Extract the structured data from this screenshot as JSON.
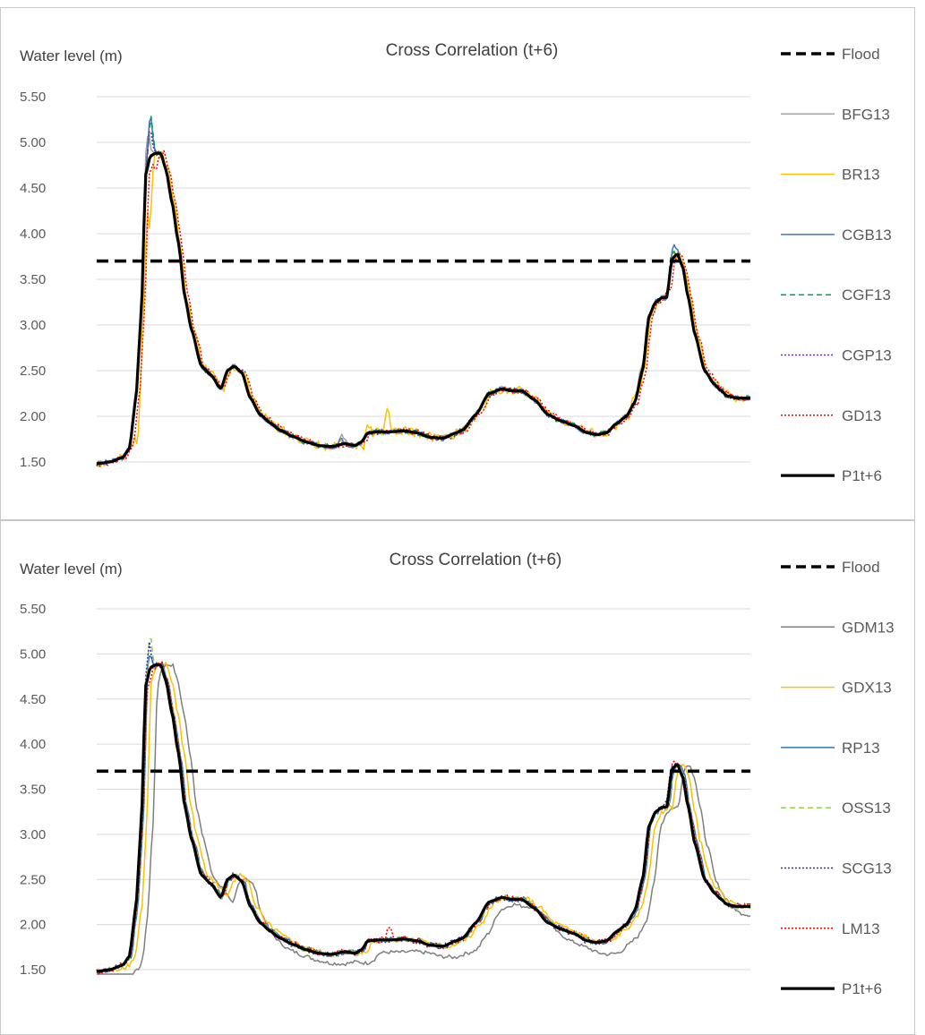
{
  "chart_data": [
    {
      "type": "line",
      "title": "Cross Correlation (t+6)",
      "ylabel": "Water level (m)",
      "xlabel": "",
      "ylim": [
        1.5,
        5.5
      ],
      "yticks": [
        "5.50",
        "5.00",
        "4.50",
        "4.00",
        "3.50",
        "3.00",
        "2.50",
        "2.00",
        "1.50"
      ],
      "xlim": [
        0,
        100
      ],
      "grid": true,
      "legend_position": "right",
      "flood_level": 3.7,
      "series": [
        {
          "name": "Flood",
          "color": "#000000",
          "dash": "dashed-bold",
          "kind": "flood"
        },
        {
          "name": "BFG13",
          "color": "#a5a5a5",
          "dash": "solid",
          "kind": "model",
          "seed": 1,
          "amp": 0.03,
          "spikes": [
            [
              7.8,
              0.35
            ],
            [
              37.5,
              0.1
            ],
            [
              83.2,
              0.1
            ]
          ],
          "shift": 0
        },
        {
          "name": "BR13",
          "color": "#ffc000",
          "dash": "solid",
          "kind": "model",
          "seed": 2,
          "amp": 0.05,
          "spikes": [
            [
              6.3,
              -0.45
            ],
            [
              8.1,
              -0.65
            ],
            [
              41.3,
              0.18
            ],
            [
              44.5,
              0.22
            ],
            [
              40.9,
              -0.12
            ],
            [
              82.2,
              0.12
            ],
            [
              87.8,
              0.18
            ]
          ],
          "shift": 0.3
        },
        {
          "name": "CGB13",
          "color": "#4472c4",
          "dash": "solid",
          "kind": "model",
          "seed": 3,
          "amp": 0.03,
          "spikes": [
            [
              8.2,
              0.45
            ],
            [
              37.4,
              0.08
            ],
            [
              88.3,
              0.14
            ]
          ],
          "shift": 0
        },
        {
          "name": "CGF13",
          "color": "#00a550",
          "dash": "dashed",
          "kind": "model",
          "seed": 4,
          "amp": 0.03,
          "spikes": [
            [
              8.3,
              0.42
            ],
            [
              87.9,
              0.1
            ]
          ],
          "shift": 0
        },
        {
          "name": "CGP13",
          "color": "#7030a0",
          "dash": "dotted",
          "kind": "model",
          "seed": 5,
          "amp": 0.025,
          "spikes": [
            [
              8.1,
              0.3
            ]
          ],
          "shift": 0
        },
        {
          "name": "GD13",
          "color": "#ff0000",
          "dash": "dotted",
          "kind": "model",
          "seed": 6,
          "amp": 0.03,
          "spikes": [
            [
              9.0,
              -0.15
            ],
            [
              87.5,
              0.1
            ]
          ],
          "shift": 0.5
        },
        {
          "name": "P1t+6",
          "color": "#000000",
          "dash": "solid-bold",
          "kind": "observed"
        }
      ]
    },
    {
      "type": "line",
      "title": "Cross Correlation (t+6)",
      "ylabel": "Water level (m)",
      "xlabel": "",
      "ylim": [
        1.5,
        5.5
      ],
      "yticks": [
        "5.50",
        "5.00",
        "4.50",
        "4.00",
        "3.50",
        "3.00",
        "2.50",
        "2.00",
        "1.50"
      ],
      "xlim": [
        0,
        100
      ],
      "grid": true,
      "legend_position": "right",
      "flood_level": 3.7,
      "series": [
        {
          "name": "Flood",
          "color": "#000000",
          "dash": "dashed-bold",
          "kind": "flood"
        },
        {
          "name": "GDM13",
          "color": "#7f7f7f",
          "dash": "solid",
          "kind": "model",
          "seed": 7,
          "amp": 0.02,
          "spikes": [],
          "shift": 1.8,
          "bias": -0.15
        },
        {
          "name": "GDX13",
          "color": "#ffc000",
          "dash": "solid",
          "kind": "model",
          "seed": 8,
          "amp": 0.03,
          "spikes": [
            [
              8.0,
              0.2
            ]
          ],
          "shift": 0.9
        },
        {
          "name": "RP13",
          "color": "#2e75b6",
          "dash": "solid",
          "kind": "model",
          "seed": 9,
          "amp": 0.03,
          "spikes": [
            [
              8.0,
              0.25
            ]
          ],
          "shift": 0.3
        },
        {
          "name": "OSS13",
          "color": "#92d050",
          "dash": "dashed",
          "kind": "model",
          "seed": 10,
          "amp": 0.03,
          "spikes": [
            [
              8.1,
              0.4
            ]
          ],
          "shift": 0.2
        },
        {
          "name": "SCG13",
          "color": "#3030a0",
          "dash": "dotted",
          "kind": "model",
          "seed": 11,
          "amp": 0.03,
          "spikes": [
            [
              8.0,
              0.3
            ],
            [
              87.5,
              0.12
            ]
          ],
          "shift": 0
        },
        {
          "name": "LM13",
          "color": "#ff0000",
          "dash": "dotted",
          "kind": "model",
          "seed": 12,
          "amp": 0.035,
          "spikes": [
            [
              8.1,
              -0.1
            ],
            [
              44.8,
              0.15
            ],
            [
              88.0,
              0.15
            ]
          ],
          "shift": 0.2
        },
        {
          "name": "P1t+6",
          "color": "#000000",
          "dash": "solid-bold",
          "kind": "observed"
        }
      ]
    }
  ],
  "observed_curve": {
    "x": [
      0,
      2,
      4,
      5,
      6,
      6.8,
      7.5,
      8.2,
      9,
      9.8,
      10.6,
      11.5,
      12.5,
      13.5,
      14.5,
      16,
      17.5,
      19,
      20,
      21,
      22.2,
      23.5,
      25,
      26.5,
      28,
      30,
      32,
      34,
      36,
      38,
      39.5,
      40.5,
      41.5,
      43,
      45,
      47,
      49,
      51,
      53,
      55,
      56,
      58,
      60,
      62,
      63.5,
      65,
      67,
      69,
      71,
      73,
      75,
      76.5,
      78,
      79.5,
      81,
      82.3,
      83.5,
      84.5,
      85.5,
      86.5,
      87.2,
      88,
      88.8,
      89.6,
      90.5,
      91.5,
      93,
      94.5,
      95.5,
      96.5,
      98,
      100
    ],
    "y": [
      1.48,
      1.5,
      1.55,
      1.65,
      2.2,
      3.1,
      4.65,
      4.85,
      4.88,
      4.88,
      4.7,
      4.35,
      3.9,
      3.3,
      2.95,
      2.55,
      2.45,
      2.3,
      2.5,
      2.55,
      2.48,
      2.2,
      2.02,
      1.93,
      1.85,
      1.78,
      1.72,
      1.68,
      1.67,
      1.7,
      1.68,
      1.72,
      1.82,
      1.83,
      1.83,
      1.84,
      1.82,
      1.77,
      1.76,
      1.82,
      1.85,
      2.02,
      2.25,
      2.3,
      2.28,
      2.28,
      2.18,
      2.02,
      1.95,
      1.9,
      1.82,
      1.8,
      1.82,
      1.92,
      2.0,
      2.15,
      2.5,
      3.1,
      3.25,
      3.3,
      3.3,
      3.72,
      3.78,
      3.65,
      3.3,
      2.9,
      2.5,
      2.35,
      2.28,
      2.22,
      2.2,
      2.2
    ]
  }
}
